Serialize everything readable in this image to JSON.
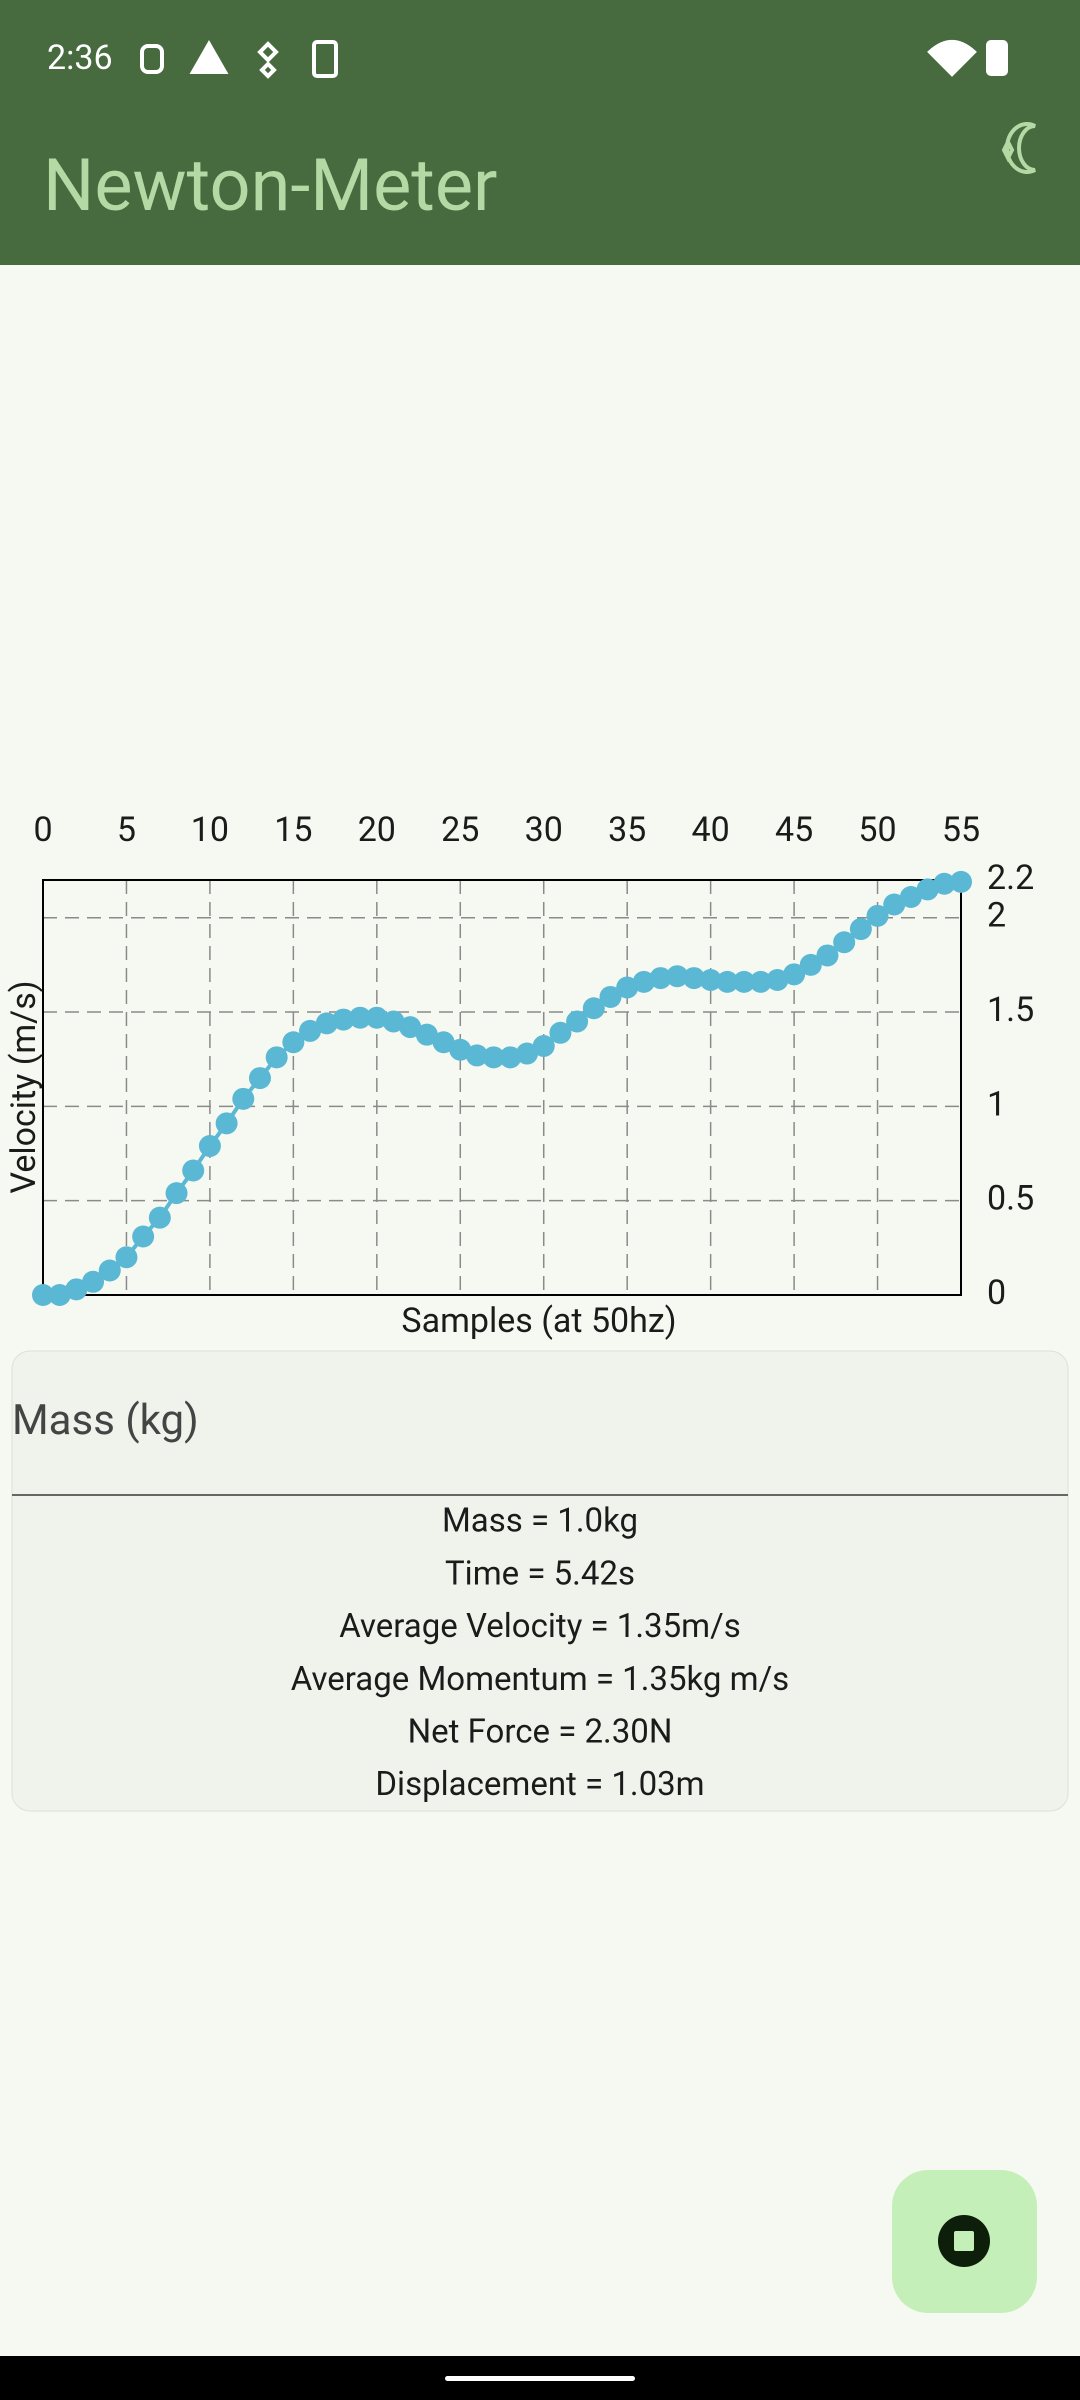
{
  "status_bar": {
    "time": "2:36"
  },
  "app_bar": {
    "title": "Newton-Meter"
  },
  "chart_data": {
    "type": "line",
    "xlabel": "Samples (at 50hz)",
    "ylabel": "Velocity (m/s)",
    "x": [
      0,
      1,
      2,
      3,
      4,
      5,
      6,
      7,
      8,
      9,
      10,
      11,
      12,
      13,
      14,
      15,
      16,
      17,
      18,
      19,
      20,
      21,
      22,
      23,
      24,
      25,
      26,
      27,
      28,
      29,
      30,
      31,
      32,
      33,
      34,
      35,
      36,
      37,
      38,
      39,
      40,
      41,
      42,
      43,
      44,
      45,
      46,
      47,
      48,
      49,
      50,
      51,
      52,
      53,
      54,
      55
    ],
    "series": [
      {
        "color": "#5ab8d4",
        "values": [
          0,
          0,
          0.03,
          0.07,
          0.13,
          0.2,
          0.31,
          0.41,
          0.54,
          0.66,
          0.79,
          0.91,
          1.04,
          1.15,
          1.26,
          1.34,
          1.4,
          1.44,
          1.46,
          1.47,
          1.47,
          1.45,
          1.42,
          1.38,
          1.34,
          1.3,
          1.27,
          1.26,
          1.26,
          1.28,
          1.32,
          1.39,
          1.45,
          1.52,
          1.58,
          1.63,
          1.66,
          1.68,
          1.69,
          1.68,
          1.67,
          1.66,
          1.66,
          1.66,
          1.67,
          1.7,
          1.75,
          1.8,
          1.87,
          1.94,
          2.01,
          2.07,
          2.11,
          2.15,
          2.18,
          2.19
        ]
      }
    ],
    "xlim": [
      0,
      55
    ],
    "xticks": [
      0,
      5,
      10,
      15,
      20,
      25,
      30,
      35,
      40,
      45,
      50,
      55
    ],
    "ylim": [
      0,
      2.2
    ],
    "yticks": [
      0,
      0.5,
      1,
      1.5,
      2,
      2.2
    ],
    "grid": true
  },
  "mass_input": {
    "label": "Mass (kg)"
  },
  "results": [
    "Mass = 1.0kg",
    "Time = 5.42s",
    "Average Velocity = 1.35m/s",
    "Average Momentum = 1.35kg m/s",
    "Net Force = 2.30N",
    "Displacement = 1.03m"
  ]
}
